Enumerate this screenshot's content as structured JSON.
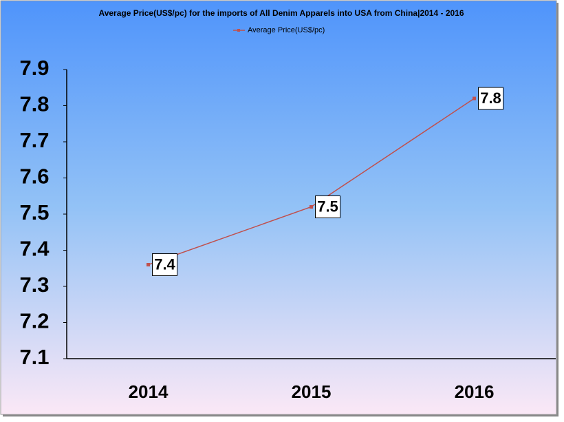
{
  "chart_data": {
    "type": "line",
    "title": "Average Price(US$/pc) for the imports of All Denim Apparels into USA from China|2014 - 2016",
    "categories": [
      "2014",
      "2015",
      "2016"
    ],
    "series": [
      {
        "name": "Average Price(US$/pc)",
        "color": "#c0504d",
        "values": [
          7.36,
          7.52,
          7.82
        ],
        "value_labels": [
          "7.4",
          "7.5",
          "7.8"
        ]
      }
    ],
    "ylim": [
      7.1,
      7.9
    ],
    "yticks": [
      7.1,
      7.2,
      7.3,
      7.4,
      7.5,
      7.6,
      7.7,
      7.8,
      7.9
    ],
    "grid": false
  }
}
